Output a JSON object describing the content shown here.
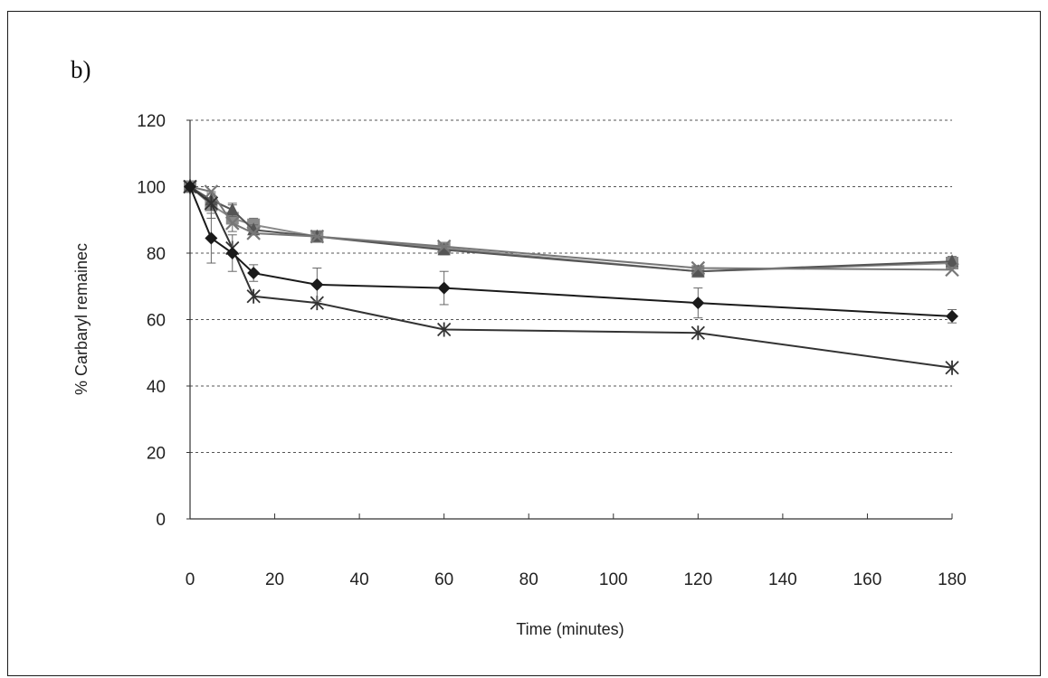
{
  "panel_label": "b)",
  "chart_data": {
    "type": "line",
    "title": "",
    "xlabel": "Time (minutes)",
    "ylabel": "% Carbaryl remainec",
    "xlim": [
      0,
      180
    ],
    "ylim": [
      0,
      120
    ],
    "xticks": [
      "0",
      "20",
      "40",
      "60",
      "80",
      "100",
      "120",
      "140",
      "160",
      "180"
    ],
    "yticks": [
      "0",
      "20",
      "40",
      "60",
      "80",
      "100",
      "120"
    ],
    "grid": "horizontal dashed",
    "legend": "none",
    "series": [
      {
        "marker": "diamond",
        "color": "#1a1a1a",
        "x": [
          0,
          5,
          10,
          15,
          30,
          60,
          120,
          180
        ],
        "y": [
          100,
          84.5,
          80,
          74,
          70.5,
          69.5,
          65,
          61
        ],
        "err": [
          0,
          7.5,
          5.5,
          2.5,
          5,
          5,
          4.5,
          2
        ]
      },
      {
        "marker": "asterisk",
        "color": "#333333",
        "x": [
          0,
          5,
          10,
          15,
          30,
          60,
          120,
          180
        ],
        "y": [
          100,
          95,
          81.5,
          67,
          65,
          57,
          56,
          45.5
        ],
        "err": [
          0,
          0,
          0,
          0,
          0,
          0,
          0,
          0
        ]
      },
      {
        "marker": "square",
        "color": "#8a8a8a",
        "x": [
          0,
          5,
          10,
          15,
          30,
          60,
          120,
          180
        ],
        "y": [
          100,
          94.5,
          90.5,
          88.5,
          85,
          81.5,
          74.5,
          77
        ],
        "err": [
          0,
          4,
          4,
          2,
          1.5,
          1.5,
          1.5,
          1.5
        ]
      },
      {
        "marker": "triangle",
        "color": "#555555",
        "x": [
          0,
          5,
          10,
          15,
          30,
          60,
          120,
          180
        ],
        "y": [
          100,
          96,
          93,
          87,
          85,
          81,
          74.5,
          77.5
        ],
        "err": [
          0,
          2,
          2,
          1.5,
          1.5,
          1.5,
          1.5,
          1.5
        ]
      },
      {
        "marker": "x",
        "color": "#777777",
        "x": [
          0,
          5,
          10,
          15,
          30,
          60,
          120,
          180
        ],
        "y": [
          100,
          98.5,
          89,
          86,
          85,
          82,
          75.5,
          75
        ],
        "err": [
          0,
          0,
          0,
          0,
          0,
          0,
          0,
          0
        ]
      }
    ]
  }
}
